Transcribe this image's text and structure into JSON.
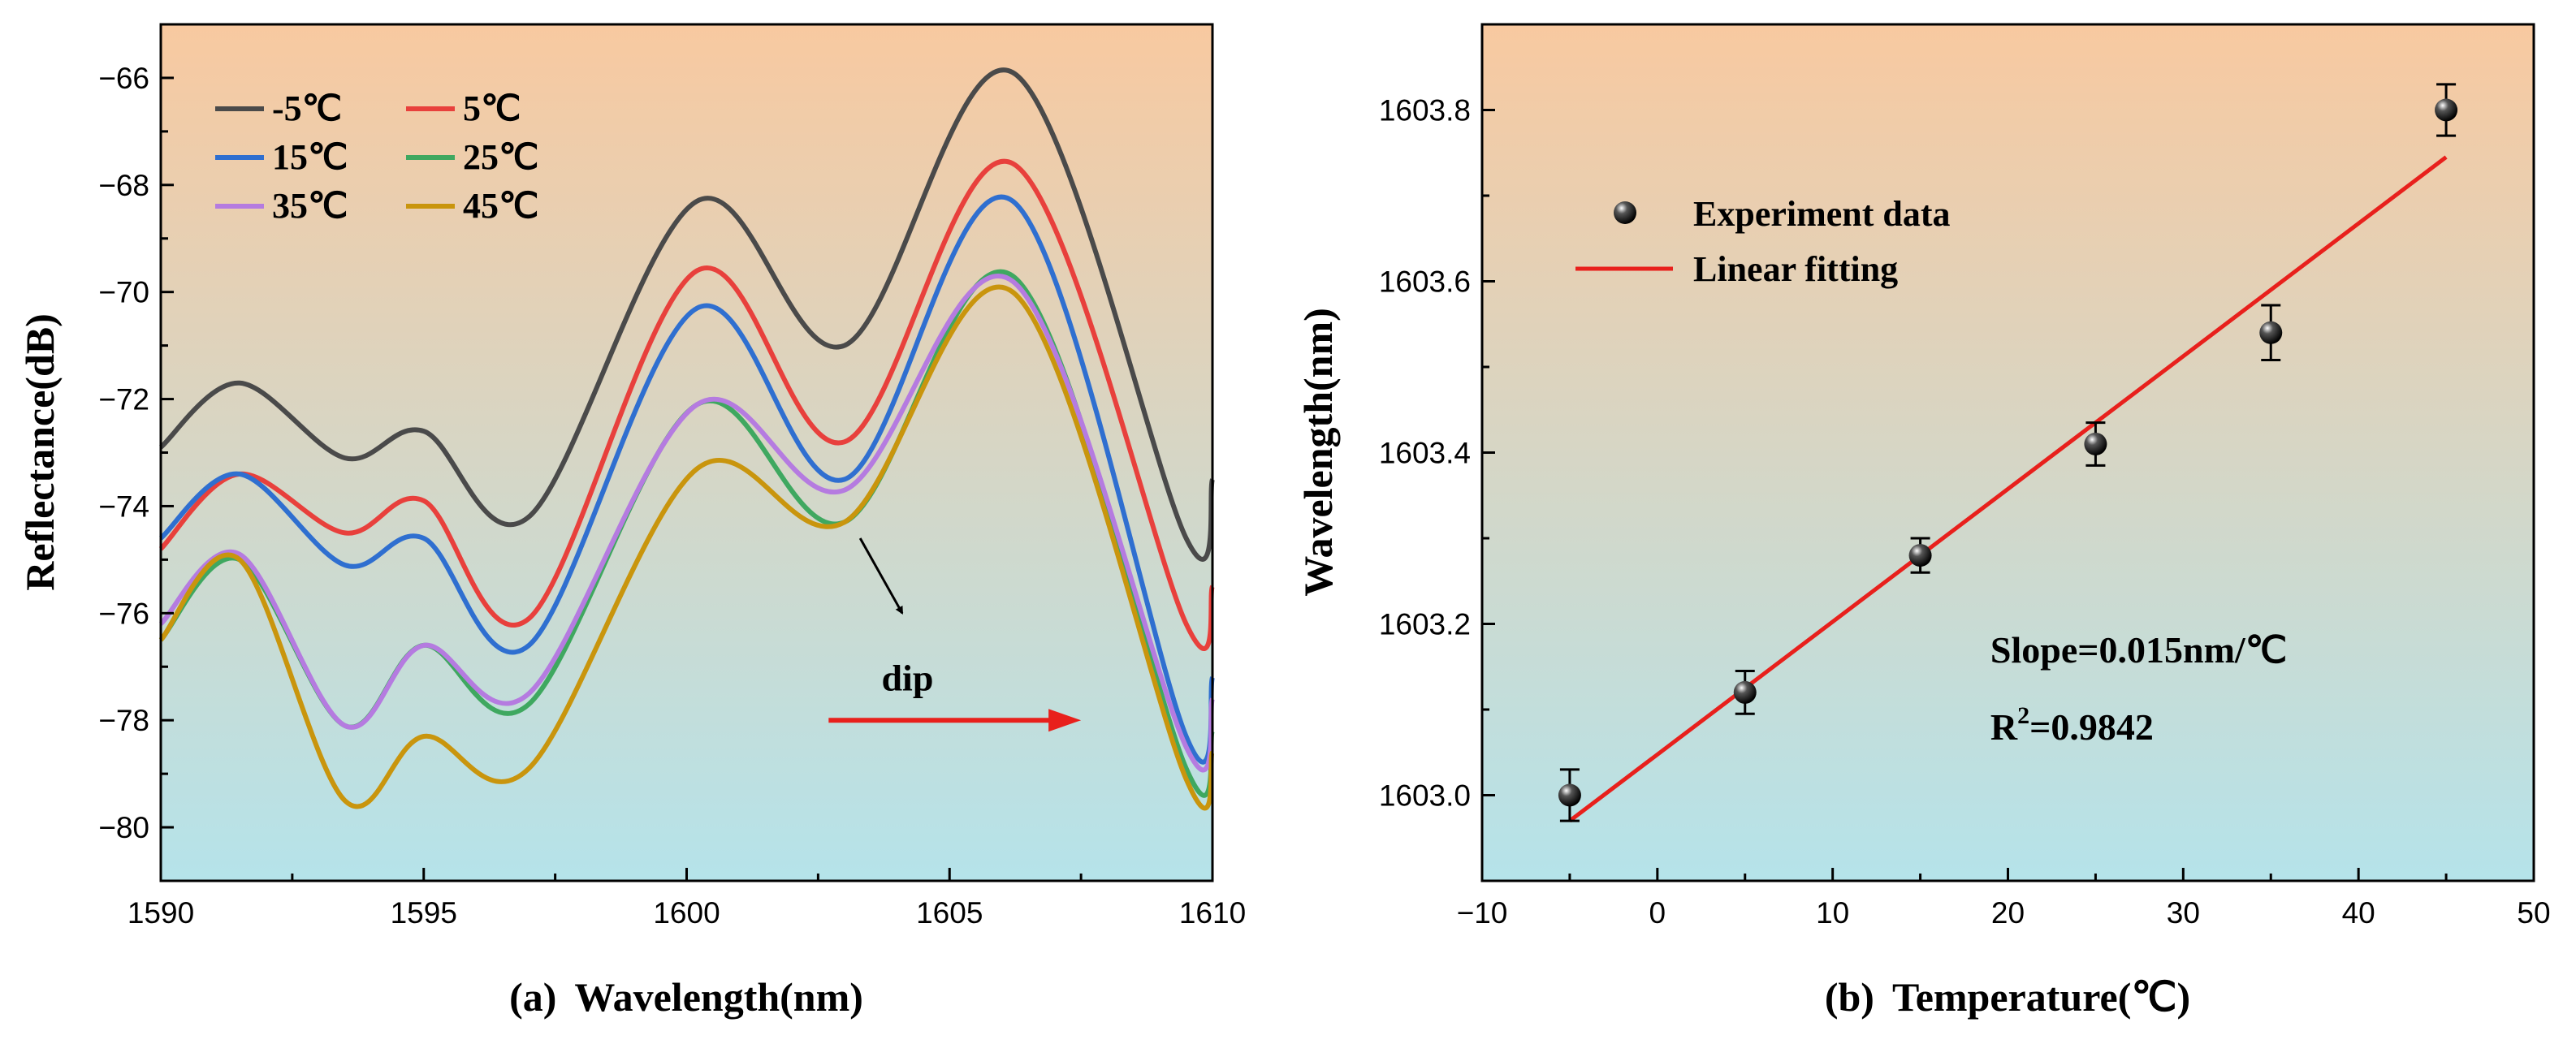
{
  "chart_data": [
    {
      "type": "line",
      "panel_label": "(a)",
      "xlabel": "Wavelength(nm)",
      "ylabel": "Reflectance(dB)",
      "xlim": [
        1590,
        1610
      ],
      "ylim": [
        -81,
        -65
      ],
      "xticks": [
        1590,
        1595,
        1600,
        1605,
        1610
      ],
      "yticks": [
        -80,
        -78,
        -76,
        -74,
        -72,
        -70,
        -68,
        -66
      ],
      "background": {
        "top": "#f8c9a0",
        "bottom": "#b5e3ea"
      },
      "legend": {
        "position": "top-left",
        "columns": 2
      },
      "annotations": [
        {
          "text": "dip",
          "arrow": "diagonal",
          "at": [
            1603.3,
            -74.6
          ],
          "label_at": [
            1604.2,
            -77.2
          ]
        },
        {
          "text": "",
          "arrow": "red-shift",
          "from": [
            1602.7,
            -78
          ],
          "to": [
            1607.5,
            -78
          ],
          "color": "#e8201c"
        }
      ],
      "x": [
        1590,
        1591.5,
        1593.5,
        1595,
        1597,
        1600.2,
        1603,
        1606.2,
        1609.5,
        1610
      ],
      "series": [
        {
          "name": "-5℃",
          "color": "#4a4a4a",
          "values": [
            -72.9,
            -71.7,
            -73.1,
            -72.6,
            -74.2,
            -68.3,
            -71.0,
            -65.9,
            -74.6,
            -73.5
          ]
        },
        {
          "name": "5℃",
          "color": "#e8403c",
          "values": [
            -74.8,
            -73.4,
            -74.5,
            -73.9,
            -76.1,
            -69.6,
            -72.8,
            -67.6,
            -76.2,
            -75.5
          ]
        },
        {
          "name": "15℃",
          "color": "#2f6fd0",
          "values": [
            -74.6,
            -73.4,
            -75.1,
            -74.6,
            -76.6,
            -70.3,
            -73.5,
            -68.3,
            -78.3,
            -77.2
          ]
        },
        {
          "name": "25℃",
          "color": "#3fa860",
          "values": [
            -76.5,
            -75.0,
            -78.1,
            -76.6,
            -77.7,
            -72.1,
            -74.3,
            -69.7,
            -78.9,
            -78.2
          ]
        },
        {
          "name": "35℃",
          "color": "#b57be0",
          "values": [
            -76.2,
            -74.9,
            -78.1,
            -76.6,
            -77.5,
            -72.1,
            -73.7,
            -69.8,
            -78.5,
            -77.6
          ]
        },
        {
          "name": "45℃",
          "color": "#c9950d",
          "values": [
            -76.5,
            -75.0,
            -79.5,
            -78.3,
            -78.9,
            -73.3,
            -74.3,
            -70.0,
            -79.1,
            -78.6
          ]
        }
      ]
    },
    {
      "type": "scatter",
      "panel_label": "(b)",
      "xlabel": "Temperature(℃)",
      "ylabel": "Wavelength(nm)",
      "xlim": [
        -10,
        50
      ],
      "ylim": [
        1602.9,
        1603.9
      ],
      "xticks": [
        -10,
        0,
        10,
        20,
        30,
        40,
        50
      ],
      "yticks": [
        1603.0,
        1603.2,
        1603.4,
        1603.6,
        1603.8
      ],
      "ytick_labels": [
        "1603.0",
        "1603.2",
        "1603.4",
        "1603.6",
        "1603.8"
      ],
      "background": {
        "top": "#f8c9a0",
        "bottom": "#b5e3ea"
      },
      "legend": {
        "position": "top-left"
      },
      "series": [
        {
          "name": "Experiment data",
          "x": [
            -5,
            5,
            15,
            25,
            35,
            45
          ],
          "y": [
            1603.0,
            1603.12,
            1603.28,
            1603.41,
            1603.54,
            1603.8
          ],
          "errors": [
            0.03,
            0.025,
            0.02,
            0.025,
            0.032,
            0.03
          ],
          "color": "#111111"
        },
        {
          "name": "Linear fitting",
          "type": "line",
          "x": [
            -5,
            45
          ],
          "y": [
            1602.97,
            1603.745
          ],
          "color": "#e8201c"
        }
      ],
      "annotations": [
        {
          "text": "Slope=0.015nm/℃",
          "at": [
            19,
            1603.17
          ]
        },
        {
          "text_prefix": "R",
          "text_sup": "2",
          "text_suffix": "=0.9842",
          "at": [
            19,
            1603.08
          ]
        }
      ]
    }
  ]
}
